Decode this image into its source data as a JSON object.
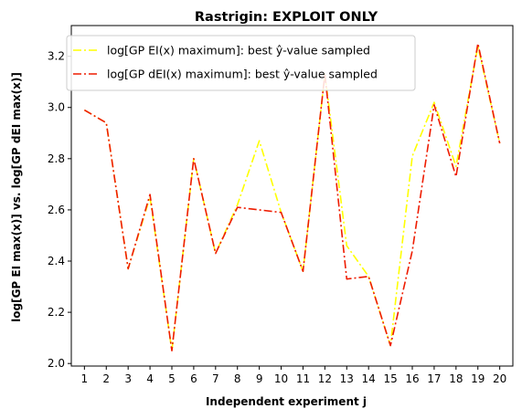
{
  "chart_data": {
    "type": "line",
    "title": "Rastrigin: EXPLOIT ONLY",
    "xlabel": "Independent experiment j",
    "ylabel": "log[GP EI max(x)] vs. log[GP dEI max(x)]",
    "categories": [
      "1",
      "2",
      "3",
      "4",
      "5",
      "6",
      "7",
      "8",
      "9",
      "10",
      "11",
      "12",
      "13",
      "14",
      "15",
      "16",
      "17",
      "18",
      "19",
      "20"
    ],
    "x": [
      1,
      2,
      3,
      4,
      5,
      6,
      7,
      8,
      9,
      10,
      11,
      12,
      13,
      14,
      15,
      16,
      17,
      18,
      19,
      20
    ],
    "xlim": [
      0.4,
      20.6
    ],
    "ylim": [
      1.99,
      3.32
    ],
    "yticks": [
      "2.0",
      "2.2",
      "2.4",
      "2.6",
      "2.8",
      "3.0",
      "3.2"
    ],
    "ytick_values": [
      2.0,
      2.2,
      2.4,
      2.6,
      2.8,
      3.0,
      3.2
    ],
    "grid": false,
    "legend_position": "upper-left",
    "series": [
      {
        "name": "log[GP EI(x) maximum]: best ŷ-value sampled",
        "color": "#ffff00",
        "style": "dash-dot",
        "values": [
          2.99,
          2.94,
          2.37,
          2.65,
          2.05,
          2.8,
          2.43,
          2.62,
          2.87,
          2.59,
          2.36,
          3.13,
          2.46,
          2.34,
          2.07,
          2.81,
          3.02,
          2.77,
          3.24,
          2.86
        ]
      },
      {
        "name": "log[GP dEI(x) maximum]: best ŷ-value sampled",
        "color": "#ee1c00",
        "style": "dash-dot",
        "values": [
          2.99,
          2.94,
          2.37,
          2.66,
          2.05,
          2.8,
          2.43,
          2.61,
          2.6,
          2.59,
          2.36,
          3.13,
          2.33,
          2.34,
          2.07,
          2.44,
          3.01,
          2.73,
          3.25,
          2.86
        ]
      }
    ]
  }
}
